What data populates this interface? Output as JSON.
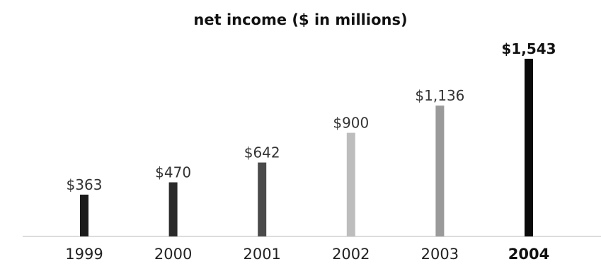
{
  "chart_data": {
    "type": "bar",
    "title": "net income ($ in millions)",
    "xlabel": "",
    "ylabel": "",
    "categories": [
      "1999",
      "2000",
      "2001",
      "2002",
      "2003",
      "2004"
    ],
    "values": [
      363,
      470,
      642,
      900,
      1136,
      1543
    ],
    "value_labels": [
      "$363",
      "$470",
      "$642",
      "$900",
      "$1,136",
      "$1,543"
    ],
    "ylim": [
      0,
      1543
    ],
    "highlight_category": "2004",
    "bar_colors": [
      "#1c1c1c",
      "#2a2a2a",
      "#4a4a4a",
      "#bdbdbd",
      "#9a9a9a",
      "#0a0a0a"
    ],
    "grid": false
  }
}
